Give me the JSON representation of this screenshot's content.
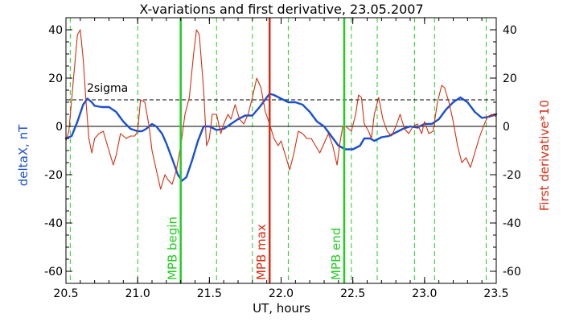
{
  "chart_data": {
    "type": "line",
    "title": "X-variations and first derivative, 23.05.2007",
    "xlabel": "UT, hours",
    "ylabel_left": "deltaX, nT",
    "ylabel_right": "First derivative*10",
    "xlim": [
      20.5,
      23.5
    ],
    "ylim": [
      -65,
      45
    ],
    "x_ticks": [
      20.5,
      21.0,
      21.5,
      22.0,
      22.5,
      23.0,
      23.5
    ],
    "x_tick_labels": [
      "20.5",
      "21.0",
      "21.5",
      "22.0",
      "22.5",
      "23.0",
      "23.5"
    ],
    "y_ticks": [
      -60,
      -40,
      -20,
      0,
      20,
      40
    ],
    "y_tick_labels": [
      "-60",
      "-40",
      "-20",
      "0",
      "20",
      "40"
    ],
    "colors": {
      "deltaX": "#1a50d0",
      "derivative": "#d03010",
      "mpb_edges": "#22cc22",
      "mpb_max": "#dd2a10",
      "grid_dashed": "#22cc22",
      "axis": "#000000"
    },
    "threshold": {
      "label": "2sigma",
      "value": 11
    },
    "series": [
      {
        "key": "deltaX",
        "points": [
          [
            20.5,
            -5
          ],
          [
            20.54,
            -4
          ],
          [
            20.58,
            2
          ],
          [
            20.62,
            9
          ],
          [
            20.65,
            11.5
          ],
          [
            20.68,
            10
          ],
          [
            20.7,
            8.5
          ],
          [
            20.75,
            8
          ],
          [
            20.8,
            8
          ],
          [
            20.85,
            6
          ],
          [
            20.9,
            2
          ],
          [
            20.95,
            -1
          ],
          [
            21.0,
            -2
          ],
          [
            21.03,
            -2
          ],
          [
            21.06,
            -1
          ],
          [
            21.1,
            1
          ],
          [
            21.13,
            0
          ],
          [
            21.17,
            -3
          ],
          [
            21.2,
            -7
          ],
          [
            21.25,
            -15
          ],
          [
            21.28,
            -20
          ],
          [
            21.31,
            -22.5
          ],
          [
            21.34,
            -21
          ],
          [
            21.38,
            -14
          ],
          [
            21.42,
            -6
          ],
          [
            21.46,
            0
          ],
          [
            21.5,
            0
          ],
          [
            21.55,
            -1.5
          ],
          [
            21.6,
            -1
          ],
          [
            21.65,
            1
          ],
          [
            21.7,
            3
          ],
          [
            21.75,
            4.5
          ],
          [
            21.8,
            4.5
          ],
          [
            21.85,
            8
          ],
          [
            21.9,
            12
          ],
          [
            21.92,
            13.5
          ],
          [
            21.95,
            13
          ],
          [
            22.0,
            11.5
          ],
          [
            22.05,
            10
          ],
          [
            22.1,
            10
          ],
          [
            22.15,
            9
          ],
          [
            22.2,
            6
          ],
          [
            22.25,
            2
          ],
          [
            22.3,
            0
          ],
          [
            22.35,
            -4
          ],
          [
            22.4,
            -8
          ],
          [
            22.45,
            -9.5
          ],
          [
            22.5,
            -9.5
          ],
          [
            22.55,
            -8
          ],
          [
            22.58,
            -5
          ],
          [
            22.62,
            -5
          ],
          [
            22.65,
            -6
          ],
          [
            22.7,
            -4.5
          ],
          [
            22.75,
            -4
          ],
          [
            22.8,
            -2.5
          ],
          [
            22.85,
            -1
          ],
          [
            22.9,
            0
          ],
          [
            22.95,
            -0.5
          ],
          [
            23.0,
            1
          ],
          [
            23.05,
            1
          ],
          [
            23.1,
            3
          ],
          [
            23.15,
            7
          ],
          [
            23.2,
            10
          ],
          [
            23.25,
            12
          ],
          [
            23.3,
            10
          ],
          [
            23.35,
            6
          ],
          [
            23.4,
            3.5
          ],
          [
            23.45,
            4
          ],
          [
            23.5,
            5
          ]
        ]
      },
      {
        "key": "derivative",
        "points": [
          [
            20.5,
            -6
          ],
          [
            20.52,
            -2
          ],
          [
            20.55,
            18
          ],
          [
            20.58,
            38
          ],
          [
            20.6,
            40
          ],
          [
            20.62,
            28
          ],
          [
            20.64,
            10
          ],
          [
            20.66,
            -5
          ],
          [
            20.68,
            -11
          ],
          [
            20.7,
            -5
          ],
          [
            20.73,
            -3
          ],
          [
            20.76,
            -2
          ],
          [
            20.78,
            -6
          ],
          [
            20.8,
            -10
          ],
          [
            20.83,
            -16
          ],
          [
            20.85,
            -12
          ],
          [
            20.88,
            -3
          ],
          [
            20.92,
            -5
          ],
          [
            20.95,
            -4
          ],
          [
            20.98,
            -4
          ],
          [
            21.0,
            -2
          ],
          [
            21.02,
            11
          ],
          [
            21.05,
            10
          ],
          [
            21.08,
            0
          ],
          [
            21.1,
            -10
          ],
          [
            21.13,
            -18
          ],
          [
            21.16,
            -26
          ],
          [
            21.19,
            -20
          ],
          [
            21.21,
            -22
          ],
          [
            21.24,
            -24
          ],
          [
            21.27,
            -18
          ],
          [
            21.3,
            -8
          ],
          [
            21.33,
            5
          ],
          [
            21.36,
            12
          ],
          [
            21.39,
            30
          ],
          [
            21.41,
            40
          ],
          [
            21.43,
            38
          ],
          [
            21.46,
            15
          ],
          [
            21.48,
            -8
          ],
          [
            21.5,
            -5
          ],
          [
            21.52,
            5
          ],
          [
            21.55,
            5
          ],
          [
            21.58,
            -3
          ],
          [
            21.6,
            1
          ],
          [
            21.63,
            5
          ],
          [
            21.65,
            3
          ],
          [
            21.68,
            9
          ],
          [
            21.71,
            3
          ],
          [
            21.74,
            1
          ],
          [
            21.77,
            5
          ],
          [
            21.8,
            12
          ],
          [
            21.83,
            20
          ],
          [
            21.86,
            16
          ],
          [
            21.89,
            6
          ],
          [
            21.92,
            1
          ],
          [
            21.95,
            -5
          ],
          [
            21.98,
            -8
          ],
          [
            22.0,
            -6
          ],
          [
            22.03,
            -12
          ],
          [
            22.06,
            -18
          ],
          [
            22.09,
            -11
          ],
          [
            22.12,
            -2
          ],
          [
            22.15,
            -3
          ],
          [
            22.18,
            -5
          ],
          [
            22.21,
            -5
          ],
          [
            22.24,
            -8
          ],
          [
            22.27,
            -11
          ],
          [
            22.3,
            -7
          ],
          [
            22.33,
            -3
          ],
          [
            22.36,
            -8
          ],
          [
            22.39,
            -16
          ],
          [
            22.41,
            -7
          ],
          [
            22.43,
            0
          ],
          [
            22.45,
            0
          ],
          [
            22.47,
            -1
          ],
          [
            22.49,
            -2
          ],
          [
            22.52,
            5
          ],
          [
            22.54,
            13
          ],
          [
            22.56,
            12
          ],
          [
            22.58,
            1
          ],
          [
            22.61,
            -2
          ],
          [
            22.63,
            -5
          ],
          [
            22.65,
            5
          ],
          [
            22.68,
            12
          ],
          [
            22.71,
            3
          ],
          [
            22.74,
            -2
          ],
          [
            22.77,
            -4
          ],
          [
            22.8,
            0
          ],
          [
            22.83,
            5
          ],
          [
            22.86,
            -1
          ],
          [
            22.89,
            -3
          ],
          [
            22.92,
            0
          ],
          [
            22.95,
            1
          ],
          [
            22.98,
            -3
          ],
          [
            23.0,
            2
          ],
          [
            23.03,
            -3
          ],
          [
            23.06,
            -2
          ],
          [
            23.09,
            10
          ],
          [
            23.12,
            17
          ],
          [
            23.14,
            16
          ],
          [
            23.17,
            10
          ],
          [
            23.2,
            2
          ],
          [
            23.23,
            -8
          ],
          [
            23.26,
            -15
          ],
          [
            23.29,
            -13
          ],
          [
            23.32,
            -17
          ],
          [
            23.35,
            -11
          ],
          [
            23.38,
            -5
          ],
          [
            23.41,
            0
          ],
          [
            23.44,
            4
          ],
          [
            23.47,
            5
          ],
          [
            23.5,
            4
          ]
        ]
      }
    ],
    "dashed_verticals": [
      20.53,
      21.0,
      21.55,
      21.8,
      22.05,
      22.49,
      22.67,
      22.93,
      23.07,
      23.43
    ],
    "markers": [
      {
        "key": "mpb_begin",
        "x": 21.3,
        "label": "MPB begin"
      },
      {
        "key": "mpb_max",
        "x": 21.92,
        "label": "MPB max"
      },
      {
        "key": "mpb_end",
        "x": 22.44,
        "label": "MPB end"
      }
    ]
  }
}
